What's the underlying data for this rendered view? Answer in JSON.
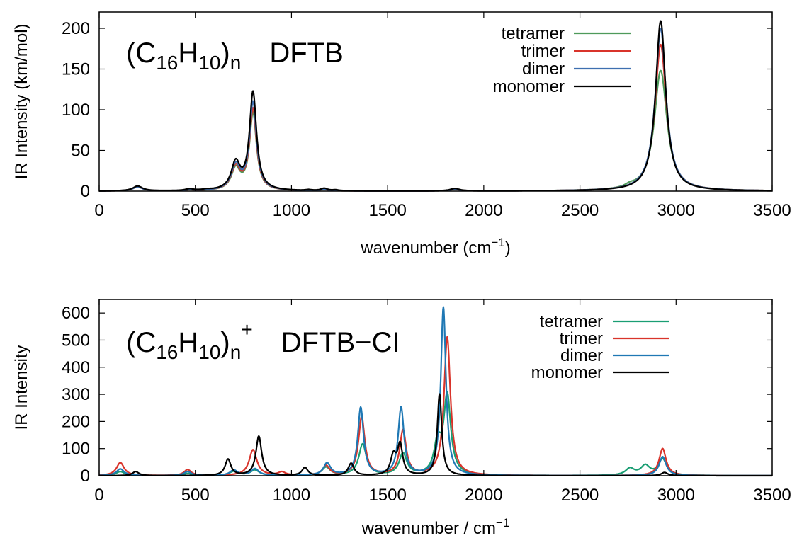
{
  "colors": {
    "tetramer_top": "#4e9a5a",
    "tetramer_bottom": "#1a9e73",
    "trimer": "#d9342b",
    "dimer_top": "#3e6fb0",
    "dimer_bottom": "#1f78b4",
    "monomer": "#000000"
  },
  "chart_data": [
    {
      "type": "line",
      "title_parts": {
        "open": "(C",
        "sub1": "16",
        "mid": "H",
        "sub2": "10",
        "close": ")",
        "sub3": "n",
        "sup": "",
        "method": "DFTB"
      },
      "xlabel": {
        "text": "wavenumber (cm",
        "sup": "−1",
        "tail": ")"
      },
      "ylabel": "IR Intensity (km/mol)",
      "xlim": [
        0,
        3500
      ],
      "ylim": [
        0,
        220
      ],
      "xticks": [
        "0",
        "500",
        "1000",
        "1500",
        "2000",
        "2500",
        "3000",
        "3500"
      ],
      "yticks": [
        "0",
        "50",
        "100",
        "150",
        "200"
      ],
      "legend_position": "top-right",
      "series": [
        {
          "name": "tetramer",
          "color": "#4e9a5a",
          "peaks": [
            [
              200,
              5,
              30
            ],
            [
              470,
              1,
              25
            ],
            [
              710,
              26,
              28
            ],
            [
              800,
              95,
              22
            ],
            [
              1170,
              2,
              20
            ],
            [
              1850,
              2,
              30
            ],
            [
              2760,
              3,
              30
            ],
            [
              2920,
              148,
              40
            ]
          ]
        },
        {
          "name": "trimer",
          "color": "#d9342b",
          "peaks": [
            [
              200,
              5,
              30
            ],
            [
              470,
              1,
              25
            ],
            [
              710,
              28,
              28
            ],
            [
              800,
              100,
              22
            ],
            [
              1170,
              2,
              20
            ],
            [
              1850,
              2,
              30
            ],
            [
              2920,
              180,
              36
            ]
          ]
        },
        {
          "name": "dimer",
          "color": "#3e6fb0",
          "peaks": [
            [
              200,
              5,
              30
            ],
            [
              470,
              1,
              25
            ],
            [
              710,
              30,
              28
            ],
            [
              800,
              108,
              22
            ],
            [
              1170,
              2,
              20
            ],
            [
              1850,
              2,
              30
            ],
            [
              2920,
              200,
              34
            ]
          ]
        },
        {
          "name": "monomer",
          "color": "#000000",
          "peaks": [
            [
              200,
              6,
              30
            ],
            [
              470,
              2,
              25
            ],
            [
              560,
              1,
              25
            ],
            [
              710,
              33,
              28
            ],
            [
              800,
              120,
              22
            ],
            [
              1090,
              1,
              20
            ],
            [
              1170,
              3,
              20
            ],
            [
              1230,
              1,
              20
            ],
            [
              1850,
              3,
              30
            ],
            [
              2920,
              209,
              32
            ]
          ]
        }
      ]
    },
    {
      "type": "line",
      "title_parts": {
        "open": "(C",
        "sub1": "16",
        "mid": "H",
        "sub2": "10",
        "close": ")",
        "sub3": "n",
        "sup": "+",
        "method": "DFTB−CI"
      },
      "xlabel": {
        "text": "wavenumber / cm",
        "sup": "−1",
        "tail": ""
      },
      "ylabel": "IR Intensity",
      "xlim": [
        0,
        3500
      ],
      "ylim": [
        0,
        650
      ],
      "xticks": [
        "0",
        "500",
        "1000",
        "1500",
        "2000",
        "2500",
        "3000",
        "3500"
      ],
      "yticks": [
        "0",
        "100",
        "200",
        "300",
        "400",
        "500",
        "600"
      ],
      "legend_position": "top-right",
      "series": [
        {
          "name": "tetramer",
          "color": "#1a9e73",
          "peaks": [
            [
              110,
              15,
              28
            ],
            [
              460,
              8,
              25
            ],
            [
              700,
              15,
              28
            ],
            [
              810,
              20,
              28
            ],
            [
              1180,
              30,
              26
            ],
            [
              1370,
              115,
              24
            ],
            [
              1580,
              80,
              24
            ],
            [
              1760,
              110,
              22
            ],
            [
              1810,
              290,
              22
            ],
            [
              2760,
              25,
              28
            ],
            [
              2840,
              35,
              28
            ],
            [
              2930,
              60,
              26
            ]
          ]
        },
        {
          "name": "trimer",
          "color": "#d9342b",
          "peaks": [
            [
              110,
              48,
              24
            ],
            [
              460,
              22,
              22
            ],
            [
              800,
              95,
              24
            ],
            [
              950,
              12,
              22
            ],
            [
              1180,
              35,
              22
            ],
            [
              1365,
              215,
              20
            ],
            [
              1580,
              165,
              20
            ],
            [
              1810,
              510,
              20
            ],
            [
              2930,
              100,
              22
            ]
          ]
        },
        {
          "name": "dimer",
          "color": "#1f78b4",
          "peaks": [
            [
              110,
              25,
              24
            ],
            [
              460,
              15,
              22
            ],
            [
              700,
              20,
              24
            ],
            [
              810,
              25,
              24
            ],
            [
              1185,
              45,
              22
            ],
            [
              1360,
              250,
              18
            ],
            [
              1570,
              250,
              18
            ],
            [
              1790,
              620,
              16
            ],
            [
              2930,
              70,
              22
            ]
          ]
        },
        {
          "name": "monomer",
          "color": "#000000",
          "peaks": [
            [
              190,
              15,
              20
            ],
            [
              670,
              60,
              18
            ],
            [
              830,
              145,
              18
            ],
            [
              1070,
              30,
              18
            ],
            [
              1310,
              45,
              18
            ],
            [
              1530,
              70,
              18
            ],
            [
              1565,
              110,
              16
            ],
            [
              1770,
              300,
              14
            ],
            [
              2940,
              12,
              20
            ]
          ]
        }
      ]
    }
  ]
}
